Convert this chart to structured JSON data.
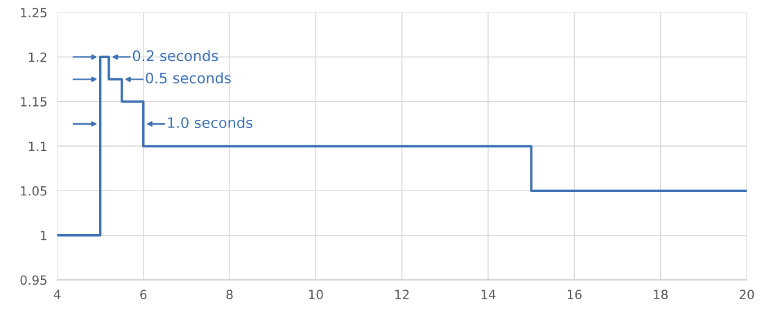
{
  "chart_data": {
    "type": "step",
    "x": [
      4,
      5,
      5.2,
      5.5,
      6,
      15,
      20
    ],
    "series": [
      {
        "color": "#3f72b5",
        "values": [
          1,
          1.2,
          1.175,
          1.15,
          1.1,
          1.05,
          1.05
        ]
      }
    ],
    "xlim": [
      4,
      20
    ],
    "xticks": [
      4,
      6,
      8,
      10,
      12,
      14,
      16,
      18,
      20
    ],
    "ylim": [
      0.95,
      1.25
    ],
    "yticks": [
      0.95,
      {
        "value": 1,
        "label": "1"
      },
      1.05,
      {
        "value": 1.1,
        "label": "1.1"
      },
      1.15,
      {
        "value": 1.2,
        "label": "1.2"
      },
      1.25
    ],
    "grid": true,
    "legend": false,
    "annotations": [
      {
        "text": "0.2 seconds",
        "x": 5.2,
        "y": 1.2
      },
      {
        "text": "0.5 seconds",
        "x": 5.5,
        "y": 1.175
      },
      {
        "text": "1.0 seconds",
        "x": 6,
        "y": 1.125
      }
    ]
  }
}
